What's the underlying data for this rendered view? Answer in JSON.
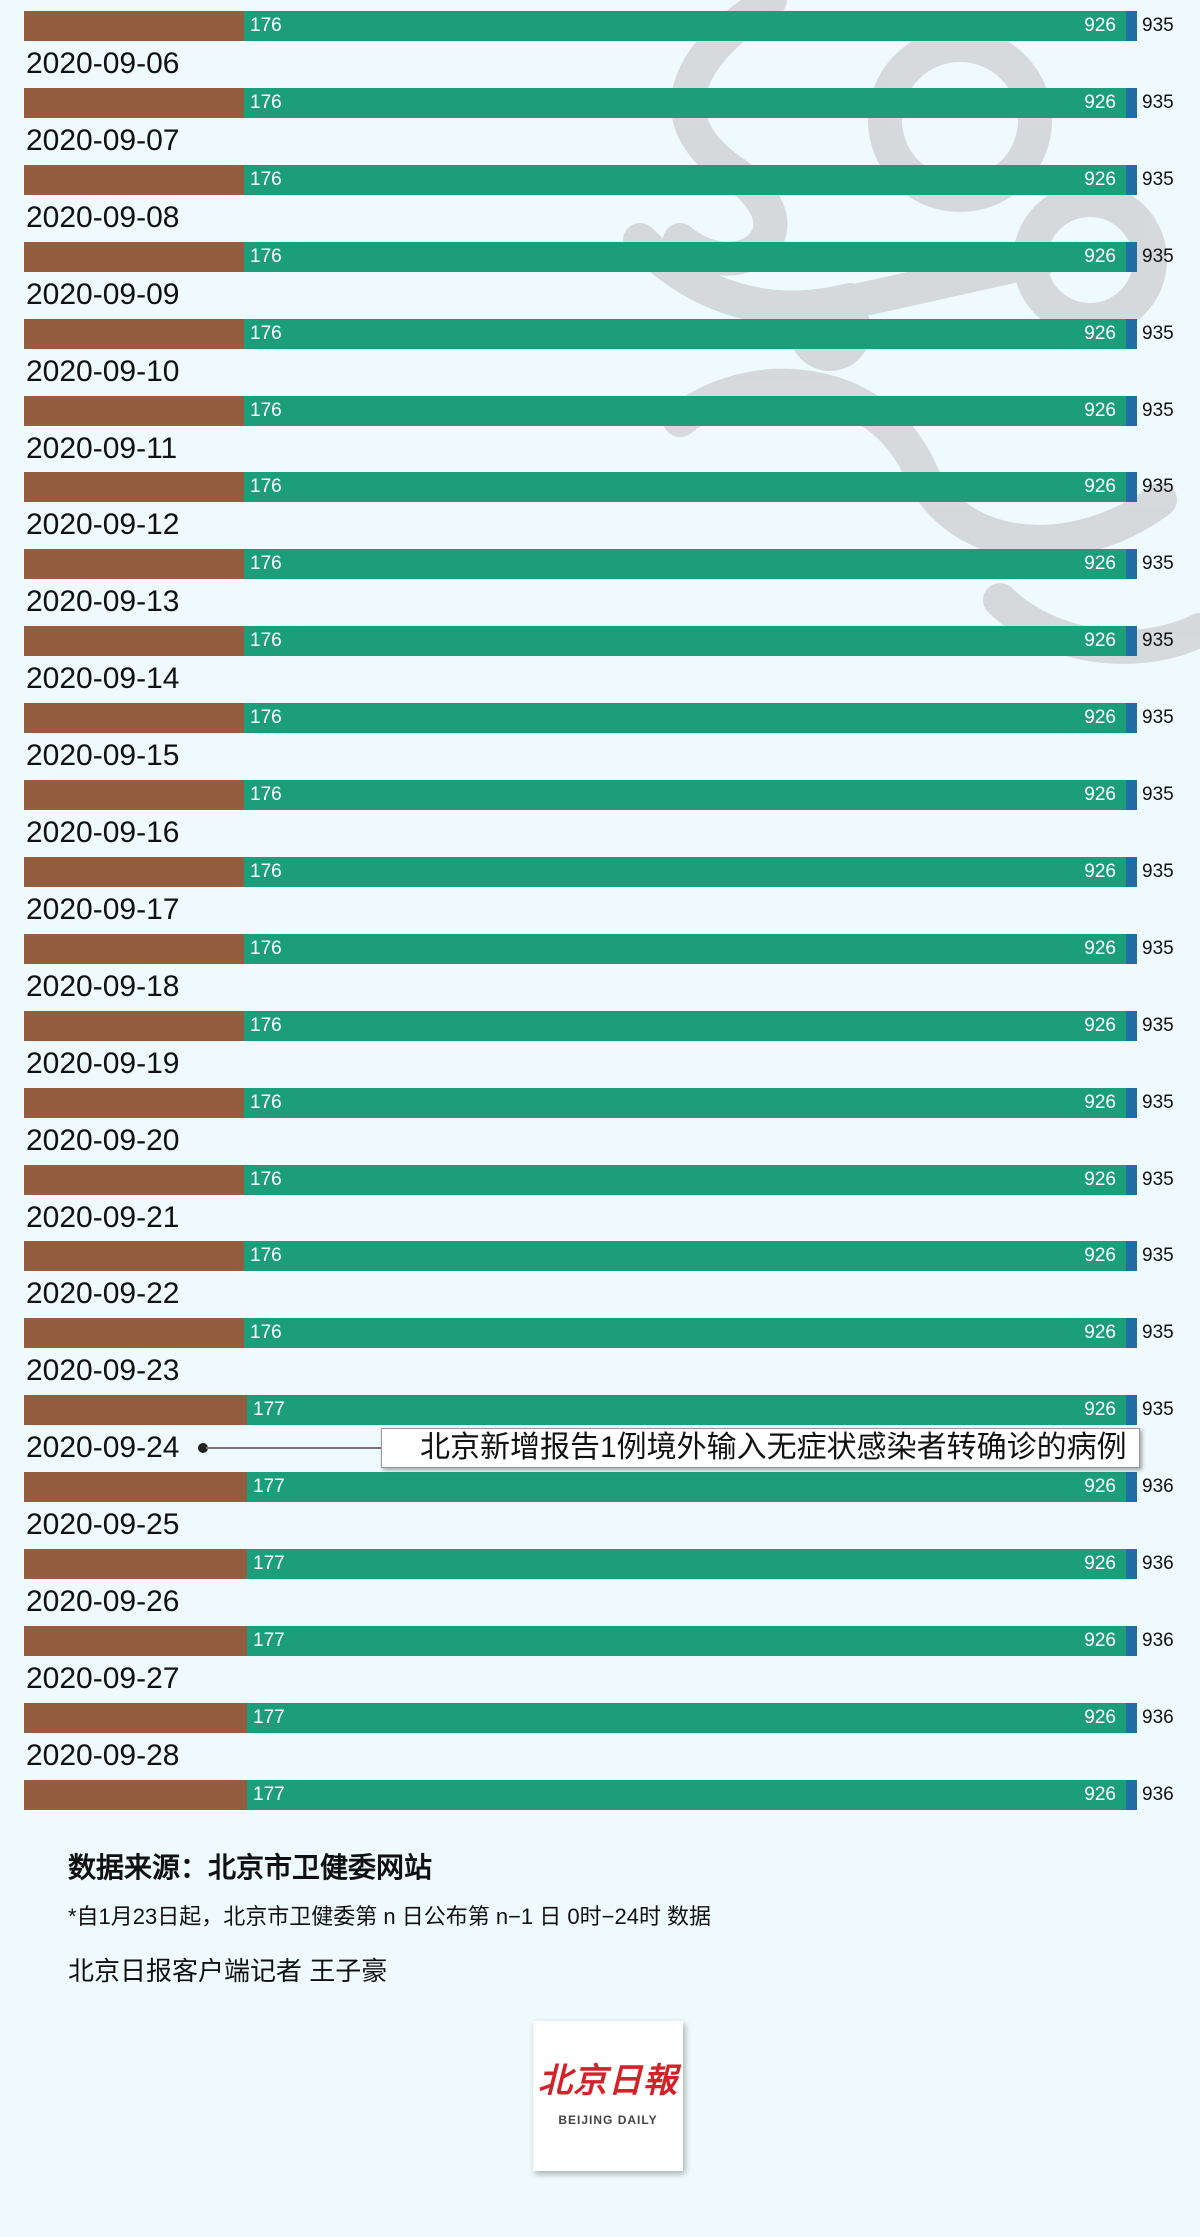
{
  "chart_data": {
    "type": "bar",
    "stacked": true,
    "orientation": "horizontal",
    "categories": [
      "",
      "2020-09-06",
      "2020-09-07",
      "2020-09-08",
      "2020-09-09",
      "2020-09-10",
      "2020-09-11",
      "2020-09-12",
      "2020-09-13",
      "2020-09-14",
      "2020-09-15",
      "2020-09-16",
      "2020-09-17",
      "2020-09-18",
      "2020-09-19",
      "2020-09-20",
      "2020-09-21",
      "2020-09-22",
      "2020-09-23",
      "2020-09-24",
      "2020-09-25",
      "2020-09-26",
      "2020-09-27",
      "2020-09-28"
    ],
    "label_1": [
      176,
      176,
      176,
      176,
      176,
      176,
      176,
      176,
      176,
      176,
      176,
      176,
      176,
      176,
      176,
      176,
      176,
      176,
      177,
      177,
      177,
      177,
      177,
      177
    ],
    "label_2": [
      926,
      926,
      926,
      926,
      926,
      926,
      926,
      926,
      926,
      926,
      926,
      926,
      926,
      926,
      926,
      926,
      926,
      926,
      926,
      926,
      926,
      926,
      926,
      926
    ],
    "totals": [
      935,
      935,
      935,
      935,
      935,
      935,
      935,
      935,
      935,
      935,
      935,
      935,
      935,
      935,
      935,
      935,
      935,
      935,
      935,
      936,
      936,
      936,
      936,
      936
    ],
    "colors": {
      "brown": "#955d3f",
      "green": "#1d9e7a",
      "blue": "#1f6fa6"
    },
    "annotation": {
      "date": "2020-09-24",
      "text": "北京新增报告1例境外输入无症状感染者转确诊的病例"
    }
  },
  "footer": {
    "source": "数据来源：北京市卫健委网站",
    "note": "*自1月23日起，北京市卫健委第 n 日公布第 n−1 日 0时−24时 数据",
    "reporter": "北京日报客户端记者 王子豪"
  },
  "logo": {
    "cn": "北京日報",
    "en": "BEIJING DAILY"
  }
}
